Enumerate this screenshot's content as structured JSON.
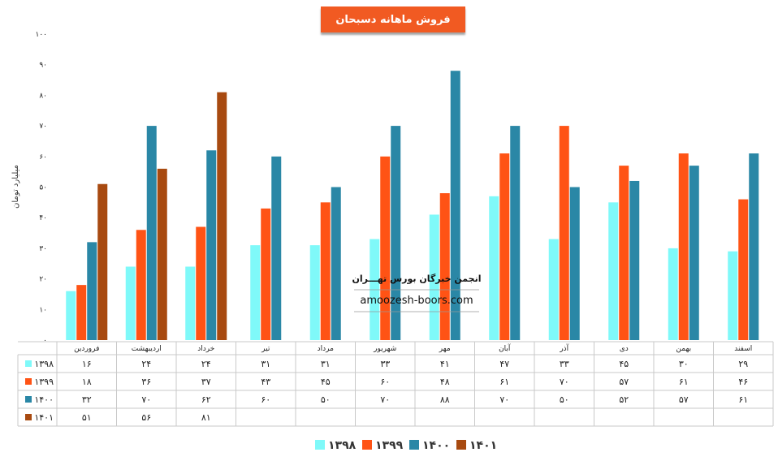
{
  "chart_data": {
    "type": "bar",
    "title": "فروش ماهانه دسبحان",
    "ylabel": "میلیارد تومان",
    "ylim": [
      0,
      100
    ],
    "yticks": [
      "۰",
      "۱۰",
      "۲۰",
      "۳۰",
      "۴۰",
      "۵۰",
      "۶۰",
      "۷۰",
      "۸۰",
      "۹۰",
      "۱۰۰"
    ],
    "categories": [
      "فروردین",
      "اردیبهشت",
      "خرداد",
      "تیر",
      "مرداد",
      "شهریور",
      "مهر",
      "آبان",
      "آذر",
      "دی",
      "بهمن",
      "اسفند"
    ],
    "series": [
      {
        "name": "۱۳۹۸",
        "color": "#7ff9f9",
        "values": [
          16,
          24,
          24,
          31,
          31,
          33,
          41,
          47,
          33,
          45,
          30,
          29
        ],
        "labels": [
          "۱۶",
          "۲۴",
          "۲۴",
          "۳۱",
          "۳۱",
          "۳۳",
          "۴۱",
          "۴۷",
          "۳۳",
          "۴۵",
          "۳۰",
          "۲۹"
        ]
      },
      {
        "name": "۱۳۹۹",
        "color": "#ff5315",
        "values": [
          18,
          36,
          37,
          43,
          45,
          60,
          48,
          61,
          70,
          57,
          61,
          46
        ],
        "labels": [
          "۱۸",
          "۳۶",
          "۳۷",
          "۴۳",
          "۴۵",
          "۶۰",
          "۴۸",
          "۶۱",
          "۷۰",
          "۵۷",
          "۶۱",
          "۴۶"
        ]
      },
      {
        "name": "۱۴۰۰",
        "color": "#2a87a6",
        "values": [
          32,
          70,
          62,
          60,
          50,
          70,
          88,
          70,
          50,
          52,
          57,
          61
        ],
        "labels": [
          "۳۲",
          "۷۰",
          "۶۲",
          "۶۰",
          "۵۰",
          "۷۰",
          "۸۸",
          "۷۰",
          "۵۰",
          "۵۲",
          "۵۷",
          "۶۱"
        ]
      },
      {
        "name": "۱۴۰۱",
        "color": "#a84a10",
        "values": [
          51,
          56,
          81,
          null,
          null,
          null,
          null,
          null,
          null,
          null,
          null,
          null
        ],
        "labels": [
          "۵۱",
          "۵۶",
          "۸۱",
          "",
          "",
          "",
          "",
          "",
          "",
          "",
          "",
          ""
        ]
      }
    ],
    "legend_position": "bottom",
    "grid": false,
    "data_table": true
  },
  "watermark": {
    "line1": "انجمن خبرگان بورس تهـــران",
    "line2": "amoozesh-boors.com"
  }
}
